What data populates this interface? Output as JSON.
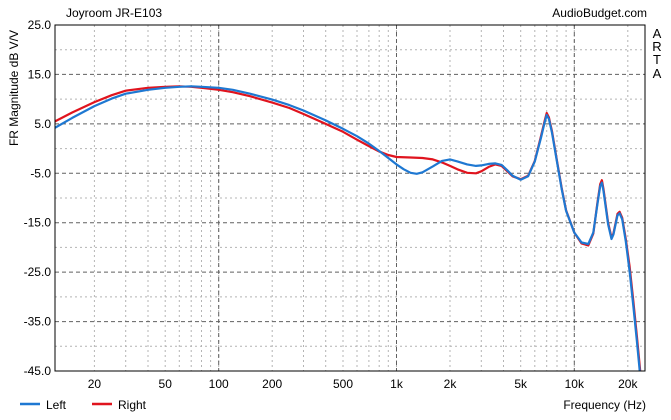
{
  "chart_data": {
    "type": "line",
    "title": "Joyroom JR-E103",
    "source_label": "AudioBudget.com",
    "side_label": [
      "A",
      "R",
      "T",
      "A"
    ],
    "xlabel": "Frequency (Hz)",
    "ylabel": "FR Magnitude dB V/V",
    "x_scale": "log",
    "xlim": [
      12,
      25000
    ],
    "ylim": [
      -45,
      25
    ],
    "grid": true,
    "legend_position": "bottom-left",
    "x_ticks": [
      {
        "value": 20,
        "label": "20"
      },
      {
        "value": 50,
        "label": "50"
      },
      {
        "value": 100,
        "label": "100"
      },
      {
        "value": 200,
        "label": "200"
      },
      {
        "value": 500,
        "label": "500"
      },
      {
        "value": 1000,
        "label": "1k"
      },
      {
        "value": 2000,
        "label": "2k"
      },
      {
        "value": 5000,
        "label": "5k"
      },
      {
        "value": 10000,
        "label": "10k"
      },
      {
        "value": 20000,
        "label": "20k"
      }
    ],
    "y_ticks": [
      {
        "value": 25,
        "label": "25.0"
      },
      {
        "value": 15,
        "label": "15.0"
      },
      {
        "value": 5,
        "label": "5.0"
      },
      {
        "value": -5,
        "label": "-5.0"
      },
      {
        "value": -15,
        "label": "-15.0"
      },
      {
        "value": -25,
        "label": "-25.0"
      },
      {
        "value": -35,
        "label": "-35.0"
      },
      {
        "value": -45,
        "label": "-45.0"
      }
    ],
    "series": [
      {
        "name": "Right",
        "color": "#e0141e",
        "points": [
          [
            12,
            5.5
          ],
          [
            15,
            7.3
          ],
          [
            20,
            9.4
          ],
          [
            25,
            10.8
          ],
          [
            30,
            11.7
          ],
          [
            40,
            12.3
          ],
          [
            50,
            12.5
          ],
          [
            60,
            12.6
          ],
          [
            70,
            12.5
          ],
          [
            80,
            12.3
          ],
          [
            100,
            11.9
          ],
          [
            120,
            11.4
          ],
          [
            150,
            10.6
          ],
          [
            200,
            9.3
          ],
          [
            250,
            8.2
          ],
          [
            300,
            7.0
          ],
          [
            400,
            5.0
          ],
          [
            500,
            3.4
          ],
          [
            600,
            1.8
          ],
          [
            700,
            0.5
          ],
          [
            800,
            -0.6
          ],
          [
            900,
            -1.3
          ],
          [
            1000,
            -1.7
          ],
          [
            1200,
            -1.8
          ],
          [
            1400,
            -1.9
          ],
          [
            1600,
            -2.2
          ],
          [
            1800,
            -2.8
          ],
          [
            2000,
            -3.5
          ],
          [
            2200,
            -4.2
          ],
          [
            2500,
            -4.9
          ],
          [
            2800,
            -5.0
          ],
          [
            3000,
            -4.6
          ],
          [
            3300,
            -3.7
          ],
          [
            3600,
            -3.2
          ],
          [
            3900,
            -3.5
          ],
          [
            4200,
            -4.6
          ],
          [
            4500,
            -5.6
          ],
          [
            5000,
            -6.2
          ],
          [
            5500,
            -5.5
          ],
          [
            6000,
            -2.5
          ],
          [
            6500,
            2.5
          ],
          [
            6800,
            5.5
          ],
          [
            7000,
            7.2
          ],
          [
            7200,
            6.3
          ],
          [
            7500,
            3.5
          ],
          [
            8000,
            -2.5
          ],
          [
            8500,
            -8.0
          ],
          [
            9000,
            -12.5
          ],
          [
            10000,
            -17.0
          ],
          [
            11000,
            -19.2
          ],
          [
            12000,
            -19.6
          ],
          [
            12800,
            -17.2
          ],
          [
            13500,
            -11.0
          ],
          [
            14000,
            -7.2
          ],
          [
            14300,
            -6.4
          ],
          [
            14600,
            -8.2
          ],
          [
            15500,
            -15.0
          ],
          [
            16200,
            -18.0
          ],
          [
            16600,
            -17.2
          ],
          [
            17500,
            -13.2
          ],
          [
            18000,
            -12.8
          ],
          [
            18600,
            -14.0
          ],
          [
            19500,
            -18.3
          ],
          [
            20500,
            -24.0
          ],
          [
            21500,
            -31.0
          ],
          [
            22500,
            -38.0
          ],
          [
            23500,
            -45.0
          ]
        ]
      },
      {
        "name": "Left",
        "color": "#1e78d2",
        "points": [
          [
            12,
            4.2
          ],
          [
            15,
            6.2
          ],
          [
            20,
            8.6
          ],
          [
            25,
            10.1
          ],
          [
            30,
            11.1
          ],
          [
            40,
            11.9
          ],
          [
            50,
            12.3
          ],
          [
            60,
            12.5
          ],
          [
            70,
            12.6
          ],
          [
            80,
            12.5
          ],
          [
            100,
            12.3
          ],
          [
            120,
            11.9
          ],
          [
            150,
            11.1
          ],
          [
            200,
            9.9
          ],
          [
            250,
            8.8
          ],
          [
            300,
            7.7
          ],
          [
            400,
            5.7
          ],
          [
            500,
            4.0
          ],
          [
            600,
            2.5
          ],
          [
            700,
            1.0
          ],
          [
            800,
            -0.5
          ],
          [
            900,
            -1.9
          ],
          [
            1000,
            -3.2
          ],
          [
            1100,
            -4.2
          ],
          [
            1200,
            -4.9
          ],
          [
            1300,
            -5.1
          ],
          [
            1400,
            -4.8
          ],
          [
            1600,
            -3.6
          ],
          [
            1800,
            -2.5
          ],
          [
            2000,
            -2.2
          ],
          [
            2200,
            -2.6
          ],
          [
            2500,
            -3.2
          ],
          [
            2800,
            -3.5
          ],
          [
            3000,
            -3.4
          ],
          [
            3300,
            -3.1
          ],
          [
            3600,
            -3.0
          ],
          [
            3900,
            -3.3
          ],
          [
            4200,
            -4.4
          ],
          [
            4500,
            -5.5
          ],
          [
            5000,
            -6.3
          ],
          [
            5500,
            -5.6
          ],
          [
            6000,
            -2.6
          ],
          [
            6500,
            2.2
          ],
          [
            6800,
            5.2
          ],
          [
            7000,
            6.8
          ],
          [
            7200,
            6.0
          ],
          [
            7500,
            3.2
          ],
          [
            8000,
            -2.7
          ],
          [
            8500,
            -8.2
          ],
          [
            9000,
            -12.6
          ],
          [
            10000,
            -17.0
          ],
          [
            11000,
            -19.0
          ],
          [
            12000,
            -19.3
          ],
          [
            12800,
            -17.0
          ],
          [
            13500,
            -11.3
          ],
          [
            14000,
            -7.6
          ],
          [
            14300,
            -6.9
          ],
          [
            14600,
            -8.6
          ],
          [
            15500,
            -15.3
          ],
          [
            16200,
            -18.3
          ],
          [
            16600,
            -17.4
          ],
          [
            17500,
            -13.5
          ],
          [
            18000,
            -13.1
          ],
          [
            18600,
            -14.3
          ],
          [
            19500,
            -18.8
          ],
          [
            20500,
            -25.0
          ],
          [
            21500,
            -32.0
          ],
          [
            22500,
            -39.0
          ],
          [
            23500,
            -46.0
          ]
        ]
      }
    ]
  }
}
